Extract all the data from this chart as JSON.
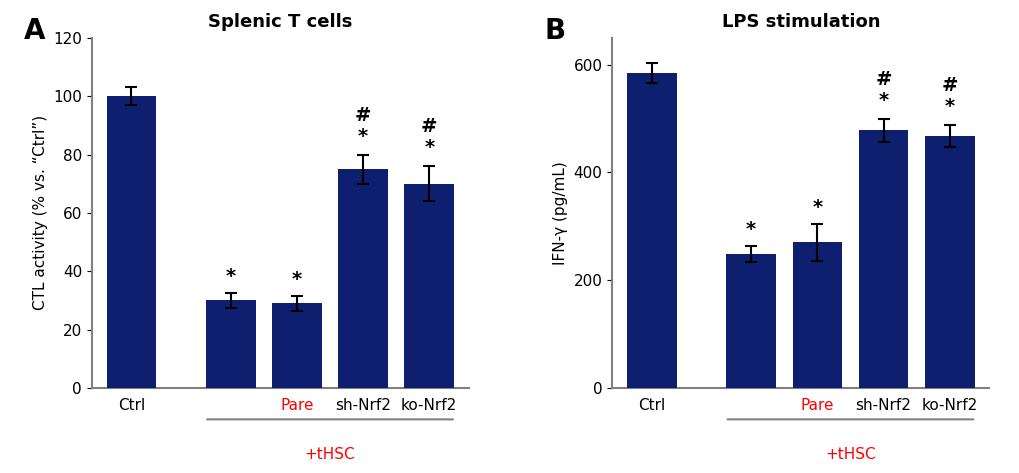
{
  "panel_A": {
    "title": "Splenic T cells",
    "ylabel": "CTL activity (% vs. “Ctrl”)",
    "values": [
      100,
      30,
      29,
      75,
      70
    ],
    "errors": [
      3,
      2.5,
      2.5,
      5,
      6
    ],
    "annotations": [
      "",
      "*",
      "*",
      "#*",
      "#*"
    ],
    "ylim": [
      0,
      120
    ],
    "yticks": [
      0,
      20,
      40,
      60,
      80,
      100,
      120
    ],
    "thsc_label": "+tHSC"
  },
  "panel_B": {
    "title": "LPS stimulation",
    "ylabel": "IFN-γ (pg/mL)",
    "values": [
      585,
      248,
      270,
      478,
      468
    ],
    "errors": [
      18,
      15,
      35,
      22,
      20
    ],
    "annotations": [
      "",
      "*",
      "*",
      "#*",
      "#*"
    ],
    "ylim": [
      0,
      650
    ],
    "yticks": [
      0,
      200,
      400,
      600
    ],
    "thsc_label": "+tHSC"
  },
  "bar_color": "#0d1f6e",
  "background_color": "#ffffff",
  "panel_label_fontsize": 20,
  "title_fontsize": 13,
  "axis_label_fontsize": 11,
  "tick_fontsize": 11,
  "annot_fontsize": 13
}
